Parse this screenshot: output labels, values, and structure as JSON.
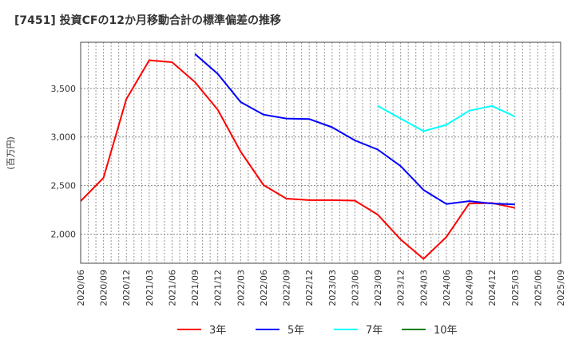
{
  "chart_data": {
    "type": "line",
    "title": "[7451]  投資CFの12か月移動合計の標準偏差の推移",
    "ylabel": "(百万円)",
    "xlabel": "",
    "ylim": [
      1700,
      3975
    ],
    "yticks": [
      2000,
      2500,
      3000,
      3500
    ],
    "ytick_labels": [
      "2,000",
      "2,500",
      "3,000",
      "3,500"
    ],
    "categories": [
      "2020/06",
      "2020/09",
      "2020/12",
      "2021/03",
      "2021/06",
      "2021/09",
      "2021/12",
      "2022/03",
      "2022/06",
      "2022/09",
      "2022/12",
      "2023/03",
      "2023/06",
      "2023/09",
      "2023/12",
      "2024/03",
      "2024/06",
      "2024/09",
      "2024/12",
      "2025/03",
      "2025/06",
      "2025/09"
    ],
    "grid": true,
    "legend_position": "bottom",
    "series": [
      {
        "name": "3年",
        "color": "#ff0000",
        "values": [
          2340,
          2580,
          3390,
          3790,
          3770,
          3565,
          3280,
          2850,
          2505,
          2365,
          2350,
          2350,
          2345,
          2200,
          1945,
          1745,
          1970,
          2315,
          2320,
          2270,
          null,
          null
        ]
      },
      {
        "name": "5年",
        "color": "#0000ff",
        "values": [
          null,
          null,
          null,
          null,
          null,
          3855,
          3650,
          3360,
          3230,
          3190,
          3185,
          3100,
          2965,
          2870,
          2700,
          2455,
          2310,
          2340,
          2315,
          2305,
          null,
          null
        ]
      },
      {
        "name": "7年",
        "color": "#00ffff",
        "values": [
          null,
          null,
          null,
          null,
          null,
          null,
          null,
          null,
          null,
          null,
          null,
          null,
          null,
          3320,
          3190,
          3060,
          3125,
          3270,
          3320,
          3210,
          null,
          null
        ]
      },
      {
        "name": "10年",
        "color": "#008000",
        "values": [
          null,
          null,
          null,
          null,
          null,
          null,
          null,
          null,
          null,
          null,
          null,
          null,
          null,
          null,
          null,
          null,
          null,
          null,
          null,
          null,
          null,
          null
        ]
      }
    ]
  }
}
